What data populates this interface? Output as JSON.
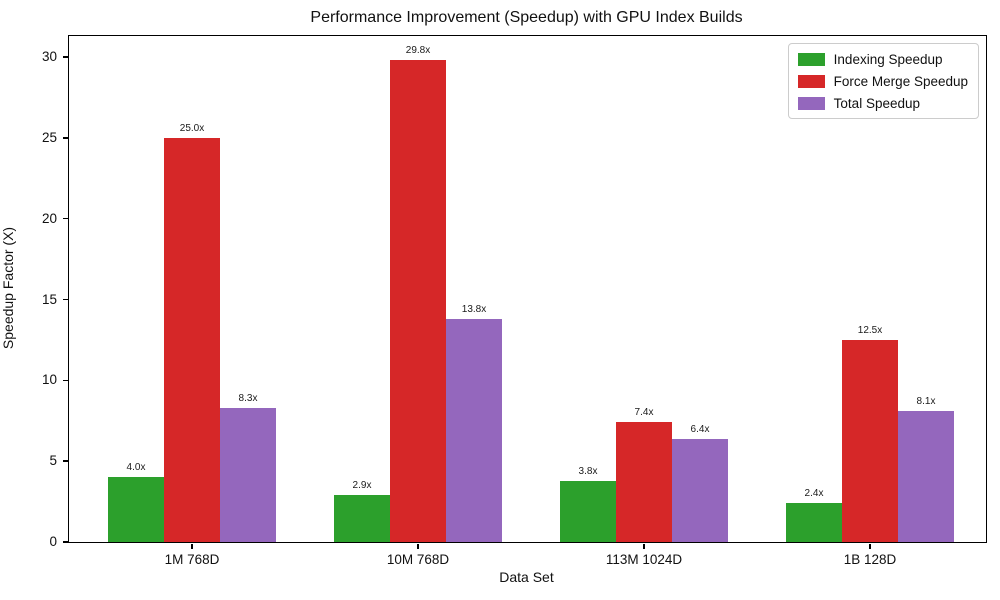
{
  "chart_data": {
    "type": "bar",
    "title": "Performance Improvement (Speedup) with GPU Index Builds",
    "xlabel": "Data Set",
    "ylabel": "Speedup Factor (X)",
    "categories": [
      "1M 768D",
      "10M 768D",
      "113M 1024D",
      "1B 128D"
    ],
    "series": [
      {
        "name": "Indexing Speedup",
        "color": "#2ca02c",
        "values": [
          4.0,
          2.9,
          3.8,
          2.4
        ],
        "bar_labels": [
          "4.0x",
          "2.9x",
          "3.8x",
          "2.4x"
        ]
      },
      {
        "name": "Force Merge Speedup",
        "color": "#d62728",
        "values": [
          25.0,
          29.8,
          7.4,
          12.5
        ],
        "bar_labels": [
          "25.0x",
          "29.8x",
          "7.4x",
          "12.5x"
        ]
      },
      {
        "name": "Total Speedup",
        "color": "#9467bd",
        "values": [
          8.3,
          13.8,
          6.4,
          8.1
        ],
        "bar_labels": [
          "8.3x",
          "13.8x",
          "6.4x",
          "8.1x"
        ]
      }
    ],
    "ylim": [
      0,
      31.3
    ],
    "yticks": [
      0,
      5,
      10,
      15,
      20,
      25,
      30
    ],
    "grid": false,
    "legend_position": "upper right"
  }
}
